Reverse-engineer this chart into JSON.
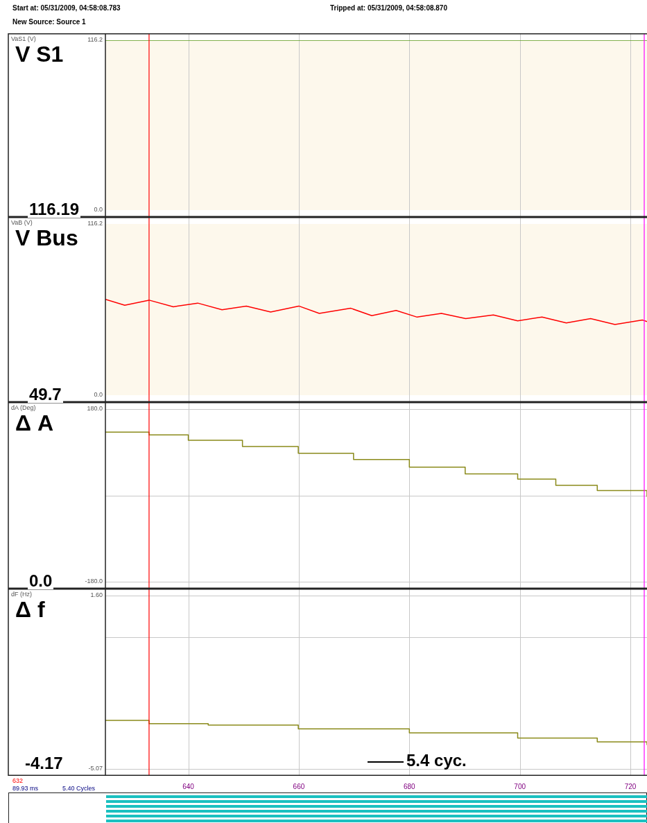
{
  "chart_data": [
    {
      "type": "line",
      "title": "V S1",
      "ylabel": "VaS1 (V)",
      "xlim": [
        625,
        723
      ],
      "xticks": [
        640,
        660,
        680,
        700,
        720
      ],
      "ylim": [
        0,
        116.2
      ],
      "yticks": [
        {
          "value": 0,
          "label": "0.0"
        },
        116.2
      ],
      "tick_labels": "y",
      "grid": "x",
      "legend": false,
      "bands": [
        {
          "axis": "y",
          "from": 0,
          "to": 116.2,
          "color": "#fdf8ec"
        }
      ],
      "ref_lines": [
        {
          "axis": "x",
          "value": 632.9,
          "color": "#ff0000"
        },
        {
          "axis": "x",
          "value": 722.5,
          "color": "#ff00ff"
        }
      ],
      "series": [
        {
          "color": "#5a9a1a",
          "x": [
            625,
            723
          ],
          "values": [
            116.19,
            116.19
          ]
        }
      ],
      "annotations": [
        "Start at:  05/31/2009, 04:58:08.783",
        "Tripped at:  05/31/2009, 04:58:08.870",
        "New Source:  Source 1",
        "116.19"
      ]
    },
    {
      "type": "line",
      "title": "V Bus",
      "ylabel": "VaB (V)",
      "xlim": [
        625,
        723
      ],
      "xticks": [
        640,
        660,
        680,
        700,
        720
      ],
      "ylim": [
        0,
        116.2
      ],
      "yticks": [
        {
          "value": 0,
          "label": "0.0"
        },
        116.2
      ],
      "tick_labels": "y",
      "grid": "x",
      "legend": false,
      "bands": [
        {
          "axis": "y",
          "from": 0,
          "to": 116.2,
          "color": "#fdf8ec"
        }
      ],
      "ref_lines": [
        {
          "axis": "x",
          "value": 632.9,
          "color": "#ff0000"
        },
        {
          "axis": "x",
          "value": 722.5,
          "color": "#ff00ff"
        }
      ],
      "series": [
        {
          "color": "#ff0000",
          "x": [
            625,
            628.5,
            632.9,
            637.3,
            641.7,
            646.1,
            650.5,
            654.9,
            660.0,
            663.7,
            669.4,
            673.2,
            677.6,
            681.4,
            685.8,
            690.2,
            695.2,
            699.6,
            704.0,
            708.4,
            712.8,
            717.2,
            722.2,
            723
          ],
          "values": [
            65,
            61,
            64.5,
            60,
            62.5,
            58,
            60.5,
            56.5,
            60.5,
            55.5,
            59,
            54,
            57.5,
            53,
            55.5,
            52,
            54.5,
            50.5,
            53,
            49,
            52,
            48,
            51,
            50
          ]
        }
      ],
      "annotations": [
        "49.7"
      ]
    },
    {
      "type": "step",
      "title": "Δ A",
      "ylabel": "dA (Deg)",
      "xlim": [
        625,
        723
      ],
      "xticks": [
        640,
        660,
        680,
        700,
        720
      ],
      "ylim": [
        -180,
        180
      ],
      "yticks": [
        {
          "value": -180,
          "label": "-180.0"
        },
        {
          "value": 0,
          "label": null
        },
        {
          "value": 180,
          "label": "180.0"
        }
      ],
      "tick_labels": "y",
      "grid": true,
      "legend": false,
      "ref_lines": [
        {
          "axis": "x",
          "value": 632.9,
          "color": "#ff0000"
        },
        {
          "axis": "x",
          "value": 722.5,
          "color": "#ff00ff"
        }
      ],
      "series": [
        {
          "color": "#8a8a1a",
          "x": [
            625,
            632.9,
            640,
            649.8,
            659.9,
            669.9,
            680.0,
            690.1,
            699.6,
            706.5,
            714.0,
            723
          ],
          "values": [
            132,
            126,
            115,
            102,
            88,
            75,
            59,
            45,
            34,
            21,
            10,
            -3
          ]
        }
      ],
      "annotations": [
        "0.0"
      ]
    },
    {
      "type": "step",
      "title": "Δ f",
      "ylabel": "dF (Hz)",
      "xlim": [
        625,
        723
      ],
      "xticks": [
        640,
        660,
        680,
        700,
        720
      ],
      "ylim": [
        -5.07,
        1.6
      ],
      "yticks": [
        {
          "value": -5.07,
          "label": "-5.07"
        },
        {
          "value": 0,
          "label": null
        },
        {
          "value": 1.6,
          "label": "1.60"
        }
      ],
      "grid": true,
      "legend": false,
      "ref_lines": [
        {
          "axis": "x",
          "value": 632.9,
          "color": "#ff0000"
        },
        {
          "axis": "x",
          "value": 722.5,
          "color": "#ff00ff"
        }
      ],
      "series": [
        {
          "color": "#8a8a1a",
          "x": [
            625,
            632.9,
            643.6,
            659.9,
            680.0,
            699.6,
            714.0,
            723
          ],
          "values": [
            -3.2,
            -3.33,
            -3.38,
            -3.53,
            -3.68,
            -3.88,
            -4.03,
            -4.15
          ]
        }
      ],
      "annotations": [
        "-4.17",
        "632",
        "89.93 ms",
        "5.40 Cycles",
        "5.4 cyc."
      ]
    }
  ]
}
